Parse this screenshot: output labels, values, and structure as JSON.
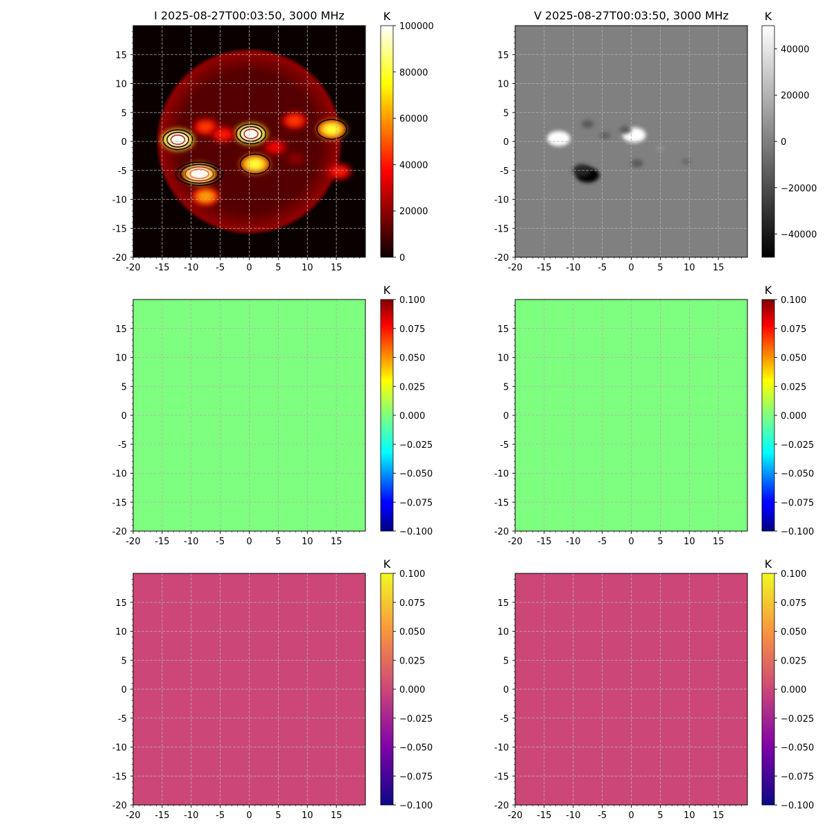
{
  "figure": {
    "background": "#ffffff"
  },
  "chart_data": [
    {
      "type": "heatmap",
      "panel": "I",
      "title": "I 2025-08-27T00:03:50, 3000 MHz",
      "xlim": [
        -20,
        20
      ],
      "ylim": [
        -20,
        20
      ],
      "xticks": [
        "-20",
        "-15",
        "-10",
        "-5",
        "0",
        "5",
        "10",
        "15"
      ],
      "yticks": [
        "-20",
        "-15",
        "-10",
        "-5",
        "0",
        "5",
        "10",
        "15"
      ],
      "grid": true,
      "colormap": "hot",
      "colorbar": {
        "label": "K",
        "min": 0,
        "max": 100000,
        "ticks": [
          "0",
          "20000",
          "40000",
          "60000",
          "80000",
          "100000"
        ]
      },
      "features": {
        "disk": {
          "cx": 0,
          "cy": 0,
          "r": 16
        },
        "sources": [
          {
            "x": -12.3,
            "y": 0.3,
            "value": 100000
          },
          {
            "x": 0.3,
            "y": 1.3,
            "value": 100000
          },
          {
            "x": -8.6,
            "y": -5.6,
            "value": 100000
          },
          {
            "x": 1,
            "y": -3.9,
            "value": 80000
          },
          {
            "x": 14.2,
            "y": 2.1,
            "value": 80000
          },
          {
            "x": -7.5,
            "y": -9.5,
            "value": 60000
          },
          {
            "x": -7.5,
            "y": 2.5,
            "value": 45000
          },
          {
            "x": -4.5,
            "y": 1.2,
            "value": 40000
          },
          {
            "x": 7.8,
            "y": 3.6,
            "value": 45000
          },
          {
            "x": 4.5,
            "y": -1,
            "value": 35000
          },
          {
            "x": 15.5,
            "y": -5.2,
            "value": 40000
          },
          {
            "x": 8,
            "y": -3,
            "value": 20000
          }
        ],
        "contours": [
          {
            "x": -12.3,
            "y": 0.3,
            "levels": [
              "black",
              "black",
              "#b22222"
            ]
          },
          {
            "x": 0.3,
            "y": 1.3,
            "levels": [
              "black",
              "black",
              "#b22222"
            ]
          },
          {
            "x": -8.6,
            "y": -5.6,
            "levels": [
              "black",
              "black",
              "#b22222",
              "#ff6347"
            ]
          },
          {
            "x": 1,
            "y": -3.9,
            "levels": [
              "black"
            ]
          },
          {
            "x": 14.2,
            "y": 2.1,
            "levels": [
              "black"
            ]
          }
        ]
      }
    },
    {
      "type": "heatmap",
      "panel": "V",
      "title": "V 2025-08-27T00:03:50, 3000 MHz",
      "xlim": [
        -20,
        20
      ],
      "ylim": [
        -20,
        20
      ],
      "xticks": [
        "-20",
        "-15",
        "-10",
        "-5",
        "0",
        "5",
        "10",
        "15"
      ],
      "yticks": [
        "-20",
        "-15",
        "-10",
        "-5",
        "0",
        "5",
        "10",
        "15"
      ],
      "grid": true,
      "colormap": "gray",
      "colorbar": {
        "label": "K",
        "min": -50000,
        "max": 50000,
        "ticks": [
          "−40000",
          "−20000",
          "0",
          "20000",
          "40000"
        ]
      },
      "features": {
        "background_value": 0,
        "sources": [
          {
            "x": -12.5,
            "y": 0.5,
            "value": 50000
          },
          {
            "x": 0.5,
            "y": 1.1,
            "value": 50000
          },
          {
            "x": -7.5,
            "y": -5.8,
            "value": -50000
          },
          {
            "x": -8.5,
            "y": -5,
            "value": -35000
          },
          {
            "x": -7.5,
            "y": 3,
            "value": -15000
          },
          {
            "x": -4.5,
            "y": 1,
            "value": -12000
          },
          {
            "x": -1,
            "y": 2,
            "value": -15000
          },
          {
            "x": 1,
            "y": -3.8,
            "value": -15000
          },
          {
            "x": 9.5,
            "y": -3.5,
            "value": -8000
          },
          {
            "x": 5,
            "y": -1.2,
            "value": 6000
          }
        ]
      }
    },
    {
      "type": "heatmap",
      "panel": "middle-left",
      "title": "",
      "xlim": [
        -20,
        20
      ],
      "ylim": [
        -20,
        20
      ],
      "xticks": [
        "-20",
        "-15",
        "-10",
        "-5",
        "0",
        "5",
        "10",
        "15"
      ],
      "yticks": [
        "-20",
        "-15",
        "-10",
        "-5",
        "0",
        "5",
        "10",
        "15"
      ],
      "grid": true,
      "colormap": "jet",
      "fill_color": "#7fff7f",
      "value": 0,
      "colorbar": {
        "label": "K",
        "min": -0.1,
        "max": 0.1,
        "ticks": [
          "−0.100",
          "−0.075",
          "−0.050",
          "−0.025",
          "0.000",
          "0.025",
          "0.050",
          "0.075",
          "0.100"
        ]
      }
    },
    {
      "type": "heatmap",
      "panel": "middle-right",
      "title": "",
      "xlim": [
        -20,
        20
      ],
      "ylim": [
        -20,
        20
      ],
      "xticks": [
        "-20",
        "-15",
        "-10",
        "-5",
        "0",
        "5",
        "10",
        "15"
      ],
      "yticks": [
        "-20",
        "-15",
        "-10",
        "-5",
        "0",
        "5",
        "10",
        "15"
      ],
      "grid": true,
      "colormap": "jet",
      "fill_color": "#7fff7f",
      "value": 0,
      "colorbar": {
        "label": "K",
        "min": -0.1,
        "max": 0.1,
        "ticks": [
          "−0.100",
          "−0.075",
          "−0.050",
          "−0.025",
          "0.000",
          "0.025",
          "0.050",
          "0.075",
          "0.100"
        ]
      }
    },
    {
      "type": "heatmap",
      "panel": "bottom-left",
      "title": "",
      "xlim": [
        -20,
        20
      ],
      "ylim": [
        -20,
        20
      ],
      "xticks": [
        "-20",
        "-15",
        "-10",
        "-5",
        "0",
        "5",
        "10",
        "15"
      ],
      "yticks": [
        "-20",
        "-15",
        "-10",
        "-5",
        "0",
        "5",
        "10",
        "15"
      ],
      "grid": true,
      "colormap": "plasma",
      "fill_color": "#cc4778",
      "value": 0,
      "colorbar": {
        "label": "K",
        "min": -0.1,
        "max": 0.1,
        "ticks": [
          "−0.100",
          "−0.075",
          "−0.050",
          "−0.025",
          "0.000",
          "0.025",
          "0.050",
          "0.075",
          "0.100"
        ]
      }
    },
    {
      "type": "heatmap",
      "panel": "bottom-right",
      "title": "",
      "xlim": [
        -20,
        20
      ],
      "ylim": [
        -20,
        20
      ],
      "xticks": [
        "-20",
        "-15",
        "-10",
        "-5",
        "0",
        "5",
        "10",
        "15"
      ],
      "yticks": [
        "-20",
        "-15",
        "-10",
        "-5",
        "0",
        "5",
        "10",
        "15"
      ],
      "grid": true,
      "colormap": "plasma",
      "fill_color": "#cc4778",
      "value": 0,
      "colorbar": {
        "label": "K",
        "min": -0.1,
        "max": 0.1,
        "ticks": [
          "−0.100",
          "−0.075",
          "−0.050",
          "−0.025",
          "0.000",
          "0.025",
          "0.050",
          "0.075",
          "0.100"
        ]
      }
    }
  ]
}
